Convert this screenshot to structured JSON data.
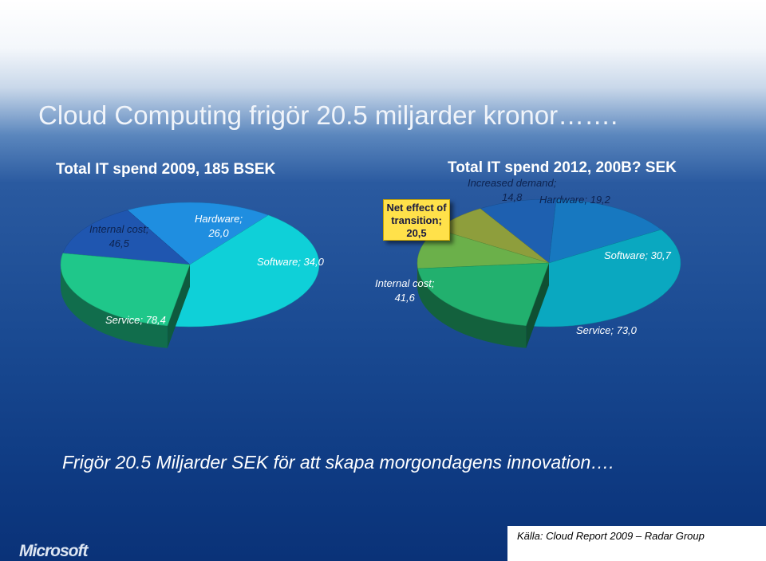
{
  "title": "Cloud Computing frigör 20.5 miljarder kronor…….",
  "tagline": "Frigör 20.5 Miljarder SEK för att skapa morgondagens innovation….",
  "logo": "Microsoft",
  "source": "Källa: Cloud Report  2009 – Radar Group",
  "chart_data": [
    {
      "type": "pie",
      "title": "Total IT spend 2009, 185 BSEK",
      "slices": [
        {
          "name": "Internal cost",
          "label": "Internal cost; 46,5",
          "value": 46.5,
          "color": "#1fc78a"
        },
        {
          "name": "Hardware",
          "label": "Hardware; 26,0",
          "value": 26.0,
          "color": "#1f56b0"
        },
        {
          "name": "Software",
          "label": "Software; 34,0",
          "value": 34.0,
          "color": "#1f8ee0"
        },
        {
          "name": "Service",
          "label": "Service; 78,4",
          "value": 78.4,
          "color": "#0fd0d8"
        }
      ]
    },
    {
      "type": "pie",
      "title": "Total IT spend 2012, 200B? SEK",
      "callout": [
        "Net effect of",
        "transition;",
        "20,5"
      ],
      "slices": [
        {
          "name": "Internal cost",
          "label": "Internal cost; 41,6",
          "value": 41.6,
          "color": "#22b06e"
        },
        {
          "name": "Net effect of transition",
          "label": "Net effect of transition; 20,5",
          "value": 20.5,
          "color": "#6bb04a"
        },
        {
          "name": "Increased demand",
          "label": "Increased demand; 14,8",
          "value": 14.8,
          "color": "#8e9e3c"
        },
        {
          "name": "Hardware",
          "label": "Hardware; 19,2",
          "value": 19.2,
          "color": "#1e60b0"
        },
        {
          "name": "Software",
          "label": "Software; 30,7",
          "value": 30.7,
          "color": "#1778c0"
        },
        {
          "name": "Service",
          "label": "Service; 73,0",
          "value": 73.0,
          "color": "#0aa8c0"
        }
      ]
    }
  ]
}
